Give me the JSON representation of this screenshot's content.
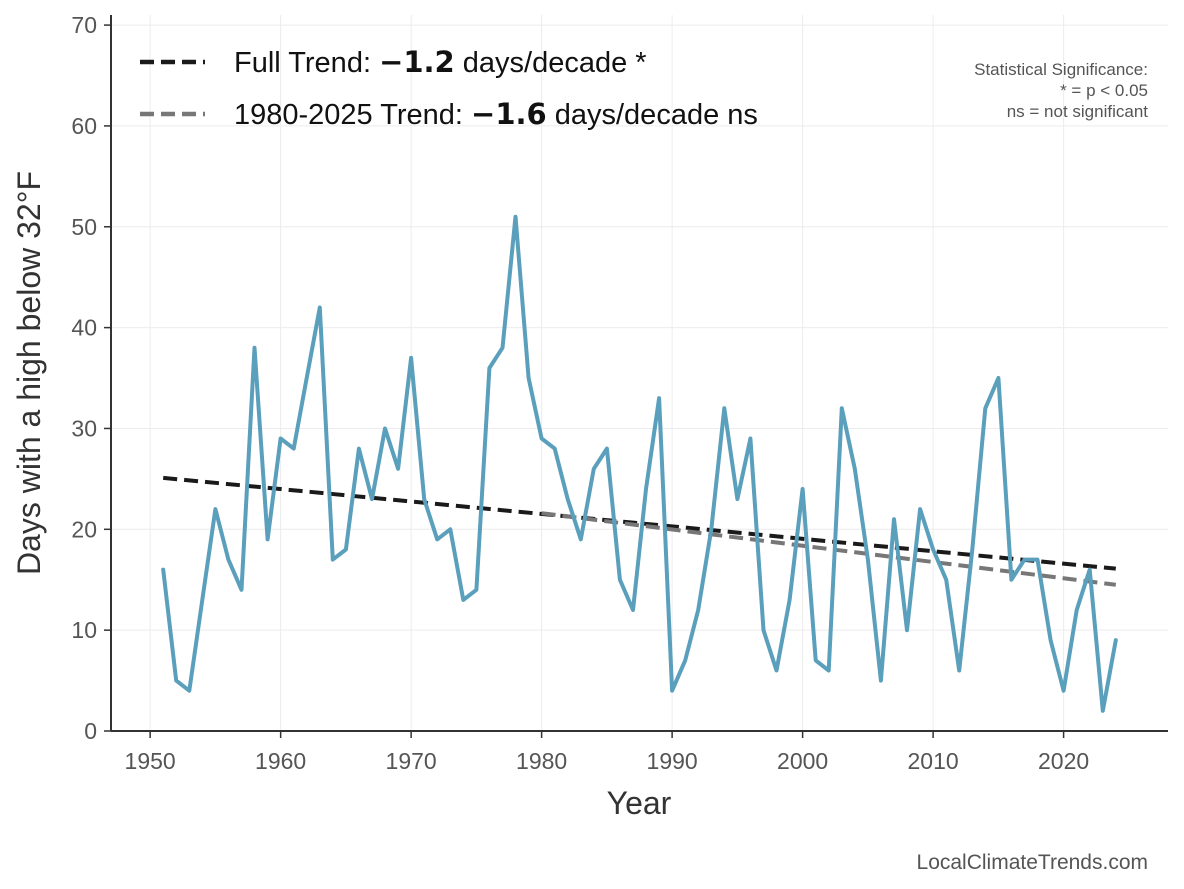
{
  "chart_data": {
    "type": "line",
    "title": "",
    "xlabel": "Year",
    "ylabel": "Days with a high below 32°F",
    "xlim": [
      1947,
      2028
    ],
    "ylim": [
      0,
      71
    ],
    "x_ticks": [
      1950,
      1960,
      1970,
      1980,
      1990,
      2000,
      2010,
      2020
    ],
    "y_ticks": [
      0,
      10,
      20,
      30,
      40,
      50,
      60,
      70
    ],
    "grid": true,
    "legend_position": "top-left",
    "x": [
      1951,
      1952,
      1953,
      1954,
      1955,
      1956,
      1957,
      1958,
      1959,
      1960,
      1961,
      1962,
      1963,
      1964,
      1965,
      1966,
      1967,
      1968,
      1969,
      1970,
      1971,
      1972,
      1973,
      1974,
      1975,
      1976,
      1977,
      1978,
      1979,
      1980,
      1981,
      1982,
      1983,
      1984,
      1985,
      1986,
      1987,
      1988,
      1989,
      1990,
      1991,
      1992,
      1993,
      1994,
      1995,
      1996,
      1997,
      1998,
      1999,
      2000,
      2001,
      2002,
      2003,
      2004,
      2005,
      2006,
      2007,
      2008,
      2009,
      2010,
      2011,
      2012,
      2013,
      2014,
      2015,
      2016,
      2017,
      2018,
      2019,
      2020,
      2021,
      2022,
      2023,
      2024
    ],
    "series": [
      {
        "name": "",
        "color": "#5a9fbb",
        "values": [
          16,
          5,
          4,
          13,
          22,
          17,
          14,
          38,
          19,
          29,
          28,
          35,
          42,
          17,
          18,
          28,
          23,
          30,
          26,
          37,
          23,
          19,
          20,
          13,
          14,
          36,
          38,
          51,
          35,
          29,
          28,
          23,
          19,
          26,
          28,
          15,
          12,
          24,
          33,
          4,
          7,
          12,
          20,
          32,
          23,
          29,
          10,
          6,
          13,
          24,
          7,
          6,
          32,
          26,
          17,
          5,
          21,
          10,
          22,
          18,
          15,
          6,
          18,
          32,
          35,
          15,
          17,
          17,
          9,
          4,
          12,
          16,
          2,
          9
        ]
      }
    ],
    "trends": [
      {
        "name": "Full Trend",
        "label_prefix": "Full Trend: ",
        "value": "−1.2",
        "label_suffix": " days/decade *",
        "color": "#1a1a1a",
        "x0": 1951,
        "y0": 25.1,
        "x1": 2024,
        "y1": 16.1
      },
      {
        "name": "1980-2025 Trend",
        "label_prefix": "1980-2025 Trend: ",
        "value": "−1.6",
        "label_suffix": " days/decade ns",
        "color": "#777777",
        "x0": 1980,
        "y0": 21.6,
        "x1": 2024,
        "y1": 14.5
      }
    ],
    "significance_note": [
      "Statistical Significance:",
      "* = p < 0.05",
      "ns = not significant"
    ],
    "credit": "LocalClimateTrends.com"
  }
}
